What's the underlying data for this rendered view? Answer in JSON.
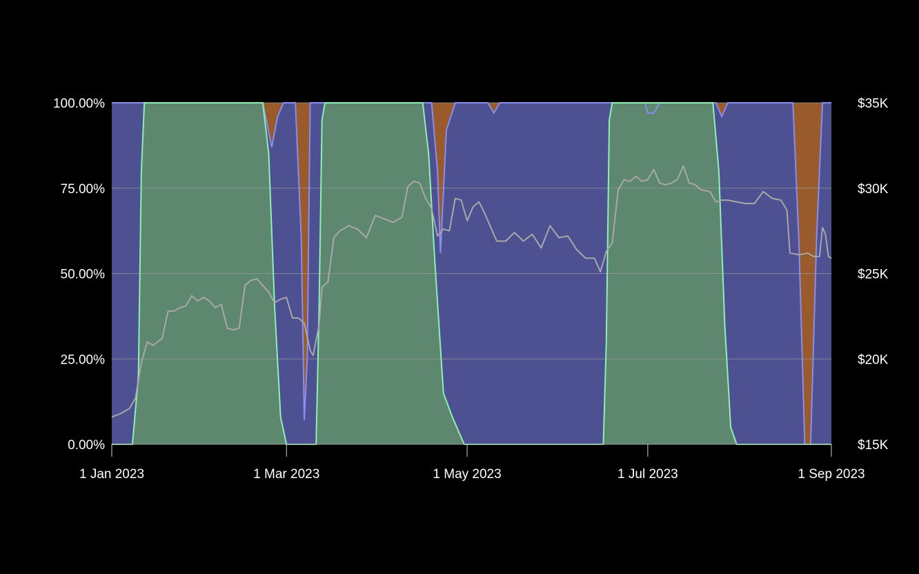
{
  "chart_data": {
    "type": "area",
    "stacked": true,
    "normalized_percent": true,
    "title": "",
    "xlabel": "",
    "ylabel": "",
    "x_range": [
      "2023-01-01",
      "2023-09-01"
    ],
    "x_ticks": [
      {
        "date": "2023-01-01",
        "label": "1 Jan 2023"
      },
      {
        "date": "2023-03-01",
        "label": "1 Mar 2023"
      },
      {
        "date": "2023-05-01",
        "label": "1 May 2023"
      },
      {
        "date": "2023-07-01",
        "label": "1 Jul 2023"
      },
      {
        "date": "2023-09-01",
        "label": "1 Sep 2023"
      }
    ],
    "y_left": {
      "ylim": [
        0,
        100
      ],
      "ticks": [
        {
          "value": 0,
          "label": "0.00%"
        },
        {
          "value": 25,
          "label": "25.00%"
        },
        {
          "value": 50,
          "label": "50.00%"
        },
        {
          "value": 75,
          "label": "75.00%"
        },
        {
          "value": 100,
          "label": "100.00%"
        }
      ]
    },
    "y_right": {
      "ylim": [
        15000,
        35000
      ],
      "ticks": [
        {
          "value": 15000,
          "label": "$15K"
        },
        {
          "value": 20000,
          "label": "$20K"
        },
        {
          "value": 25000,
          "label": "$25K"
        },
        {
          "value": 30000,
          "label": "$30K"
        },
        {
          "value": 35000,
          "label": "$35K"
        }
      ]
    },
    "grid": true,
    "legend": "none",
    "colors": {
      "background": "#000000",
      "stack_bottom_fill": "#5e8770",
      "stack_bottom_line": "#8ef0b4",
      "stack_middle_fill": "#4d5091",
      "stack_middle_line": "#8a8dee",
      "stack_top_fill": "#9a5b2c",
      "price_line": "#a8a8a8",
      "gridline": "#9a9a9a"
    },
    "stack_bottom": [
      [
        "2023-01-01",
        0
      ],
      [
        "2023-01-08",
        0
      ],
      [
        "2023-01-10",
        20
      ],
      [
        "2023-01-11",
        80
      ],
      [
        "2023-01-12",
        100
      ],
      [
        "2023-02-21",
        100
      ],
      [
        "2023-02-23",
        85
      ],
      [
        "2023-02-25",
        40
      ],
      [
        "2023-02-27",
        8
      ],
      [
        "2023-03-01",
        0
      ],
      [
        "2023-03-11",
        0
      ],
      [
        "2023-03-12",
        40
      ],
      [
        "2023-03-13",
        95
      ],
      [
        "2023-03-14",
        100
      ],
      [
        "2023-04-16",
        100
      ],
      [
        "2023-04-18",
        85
      ],
      [
        "2023-04-20",
        55
      ],
      [
        "2023-04-23",
        15
      ],
      [
        "2023-04-26",
        8
      ],
      [
        "2023-04-30",
        0
      ],
      [
        "2023-06-16",
        0
      ],
      [
        "2023-06-17",
        30
      ],
      [
        "2023-06-18",
        95
      ],
      [
        "2023-06-19",
        100
      ],
      [
        "2023-07-23",
        100
      ],
      [
        "2023-07-25",
        80
      ],
      [
        "2023-07-27",
        35
      ],
      [
        "2023-07-29",
        5
      ],
      [
        "2023-07-31",
        0
      ],
      [
        "2023-09-01",
        0
      ]
    ],
    "stack_bottom_plus_middle": [
      [
        "2023-01-01",
        100
      ],
      [
        "2023-02-21",
        100
      ],
      [
        "2023-02-24",
        87
      ],
      [
        "2023-02-26",
        96
      ],
      [
        "2023-02-28",
        100
      ],
      [
        "2023-03-04",
        100
      ],
      [
        "2023-03-06",
        60
      ],
      [
        "2023-03-07",
        7
      ],
      [
        "2023-03-08",
        25
      ],
      [
        "2023-03-09",
        100
      ],
      [
        "2023-04-19",
        100
      ],
      [
        "2023-04-21",
        80
      ],
      [
        "2023-04-22",
        56
      ],
      [
        "2023-04-24",
        92
      ],
      [
        "2023-04-27",
        100
      ],
      [
        "2023-05-08",
        100
      ],
      [
        "2023-05-10",
        97
      ],
      [
        "2023-05-12",
        100
      ],
      [
        "2023-06-30",
        100
      ],
      [
        "2023-07-01",
        97
      ],
      [
        "2023-07-03",
        97
      ],
      [
        "2023-07-05",
        100
      ],
      [
        "2023-07-24",
        100
      ],
      [
        "2023-07-26",
        96
      ],
      [
        "2023-07-28",
        100
      ],
      [
        "2023-08-19",
        100
      ],
      [
        "2023-08-21",
        60
      ],
      [
        "2023-08-23",
        0
      ],
      [
        "2023-08-25",
        0
      ],
      [
        "2023-08-27",
        60
      ],
      [
        "2023-08-29",
        100
      ],
      [
        "2023-09-01",
        100
      ]
    ],
    "price_series": [
      [
        "2023-01-01",
        16600
      ],
      [
        "2023-01-04",
        16800
      ],
      [
        "2023-01-07",
        17100
      ],
      [
        "2023-01-09",
        17700
      ],
      [
        "2023-01-11",
        19800
      ],
      [
        "2023-01-13",
        21000
      ],
      [
        "2023-01-15",
        20800
      ],
      [
        "2023-01-18",
        21200
      ],
      [
        "2023-01-20",
        22800
      ],
      [
        "2023-01-22",
        22800
      ],
      [
        "2023-01-24",
        23000
      ],
      [
        "2023-01-26",
        23100
      ],
      [
        "2023-01-28",
        23700
      ],
      [
        "2023-01-30",
        23400
      ],
      [
        "2023-02-01",
        23600
      ],
      [
        "2023-02-03",
        23400
      ],
      [
        "2023-02-05",
        23000
      ],
      [
        "2023-02-07",
        23200
      ],
      [
        "2023-02-09",
        21800
      ],
      [
        "2023-02-11",
        21700
      ],
      [
        "2023-02-13",
        21800
      ],
      [
        "2023-02-15",
        24300
      ],
      [
        "2023-02-17",
        24600
      ],
      [
        "2023-02-19",
        24700
      ],
      [
        "2023-02-21",
        24300
      ],
      [
        "2023-02-23",
        23900
      ],
      [
        "2023-02-25",
        23300
      ],
      [
        "2023-02-27",
        23500
      ],
      [
        "2023-03-01",
        23600
      ],
      [
        "2023-03-03",
        22400
      ],
      [
        "2023-03-05",
        22400
      ],
      [
        "2023-03-07",
        22100
      ],
      [
        "2023-03-09",
        20500
      ],
      [
        "2023-03-10",
        20200
      ],
      [
        "2023-03-12",
        22000
      ],
      [
        "2023-03-13",
        24200
      ],
      [
        "2023-03-15",
        24500
      ],
      [
        "2023-03-17",
        27100
      ],
      [
        "2023-03-19",
        27500
      ],
      [
        "2023-03-22",
        27800
      ],
      [
        "2023-03-25",
        27600
      ],
      [
        "2023-03-28",
        27100
      ],
      [
        "2023-03-31",
        28400
      ],
      [
        "2023-04-03",
        28200
      ],
      [
        "2023-04-06",
        28000
      ],
      [
        "2023-04-09",
        28300
      ],
      [
        "2023-04-11",
        30100
      ],
      [
        "2023-04-13",
        30400
      ],
      [
        "2023-04-15",
        30300
      ],
      [
        "2023-04-17",
        29400
      ],
      [
        "2023-04-19",
        28800
      ],
      [
        "2023-04-21",
        27200
      ],
      [
        "2023-04-23",
        27600
      ],
      [
        "2023-04-25",
        27500
      ],
      [
        "2023-04-27",
        29400
      ],
      [
        "2023-04-29",
        29300
      ],
      [
        "2023-05-01",
        28100
      ],
      [
        "2023-05-03",
        28900
      ],
      [
        "2023-05-05",
        29200
      ],
      [
        "2023-05-07",
        28500
      ],
      [
        "2023-05-09",
        27700
      ],
      [
        "2023-05-11",
        26900
      ],
      [
        "2023-05-14",
        26900
      ],
      [
        "2023-05-17",
        27400
      ],
      [
        "2023-05-20",
        26900
      ],
      [
        "2023-05-23",
        27300
      ],
      [
        "2023-05-26",
        26500
      ],
      [
        "2023-05-29",
        27800
      ],
      [
        "2023-06-01",
        27100
      ],
      [
        "2023-06-04",
        27200
      ],
      [
        "2023-06-07",
        26400
      ],
      [
        "2023-06-10",
        25900
      ],
      [
        "2023-06-13",
        25900
      ],
      [
        "2023-06-15",
        25100
      ],
      [
        "2023-06-17",
        26300
      ],
      [
        "2023-06-19",
        26800
      ],
      [
        "2023-06-21",
        29900
      ],
      [
        "2023-06-23",
        30500
      ],
      [
        "2023-06-25",
        30400
      ],
      [
        "2023-06-27",
        30700
      ],
      [
        "2023-06-29",
        30400
      ],
      [
        "2023-07-01",
        30500
      ],
      [
        "2023-07-03",
        31100
      ],
      [
        "2023-07-05",
        30300
      ],
      [
        "2023-07-07",
        30200
      ],
      [
        "2023-07-09",
        30300
      ],
      [
        "2023-07-11",
        30500
      ],
      [
        "2023-07-13",
        31300
      ],
      [
        "2023-07-15",
        30300
      ],
      [
        "2023-07-17",
        30200
      ],
      [
        "2023-07-19",
        29900
      ],
      [
        "2023-07-22",
        29800
      ],
      [
        "2023-07-24",
        29200
      ],
      [
        "2023-07-26",
        29300
      ],
      [
        "2023-07-28",
        29300
      ],
      [
        "2023-07-31",
        29200
      ],
      [
        "2023-08-03",
        29100
      ],
      [
        "2023-08-06",
        29100
      ],
      [
        "2023-08-09",
        29800
      ],
      [
        "2023-08-12",
        29400
      ],
      [
        "2023-08-15",
        29300
      ],
      [
        "2023-08-17",
        28700
      ],
      [
        "2023-08-18",
        26200
      ],
      [
        "2023-08-21",
        26100
      ],
      [
        "2023-08-24",
        26200
      ],
      [
        "2023-08-26",
        26000
      ],
      [
        "2023-08-28",
        26000
      ],
      [
        "2023-08-29",
        27700
      ],
      [
        "2023-08-30",
        27300
      ],
      [
        "2023-08-31",
        26000
      ],
      [
        "2023-09-01",
        25900
      ]
    ]
  }
}
